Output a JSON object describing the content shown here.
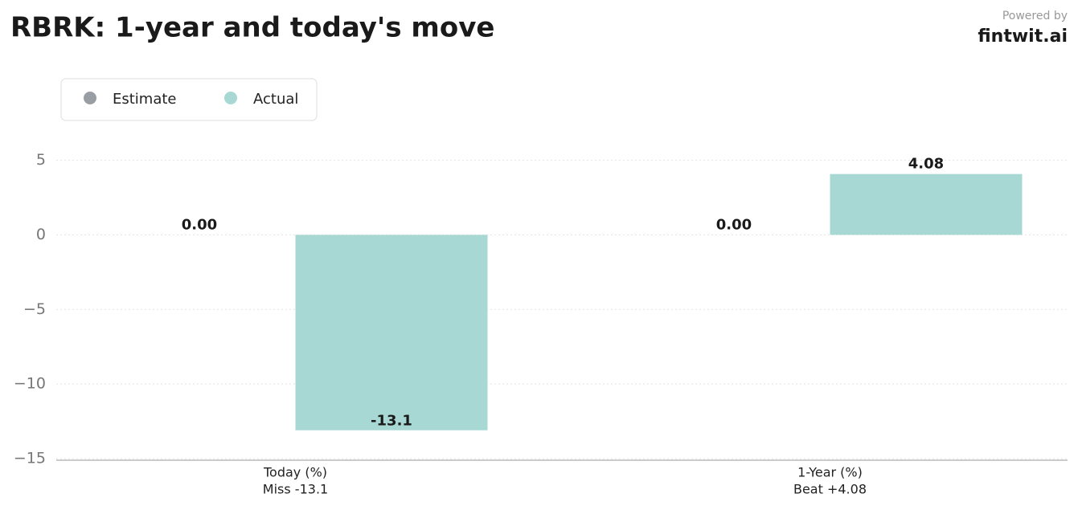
{
  "chart_data": {
    "type": "bar",
    "title": "RBRK: 1-year and today's move",
    "powered_by": "Powered by",
    "brand": "fintwit.ai",
    "categories": [
      [
        "Today (%)",
        "Miss -13.1"
      ],
      [
        "1-Year (%)",
        "Beat +4.08"
      ]
    ],
    "series": [
      {
        "name": "Estimate",
        "color": "#999ea4",
        "values": [
          0,
          0
        ],
        "value_labels": [
          "0.00",
          "0.00"
        ]
      },
      {
        "name": "Actual",
        "color": "#a8d8d4",
        "values": [
          -13.1,
          4.08
        ],
        "value_labels": [
          "-13.1",
          "4.08"
        ]
      }
    ],
    "ylim": [
      -15,
      6
    ],
    "yticks": [
      {
        "value": -15,
        "label": "−15"
      },
      {
        "value": -10,
        "label": "−10"
      },
      {
        "value": -5,
        "label": "−5"
      },
      0,
      5
    ],
    "grid": true,
    "legend": "upper left"
  }
}
